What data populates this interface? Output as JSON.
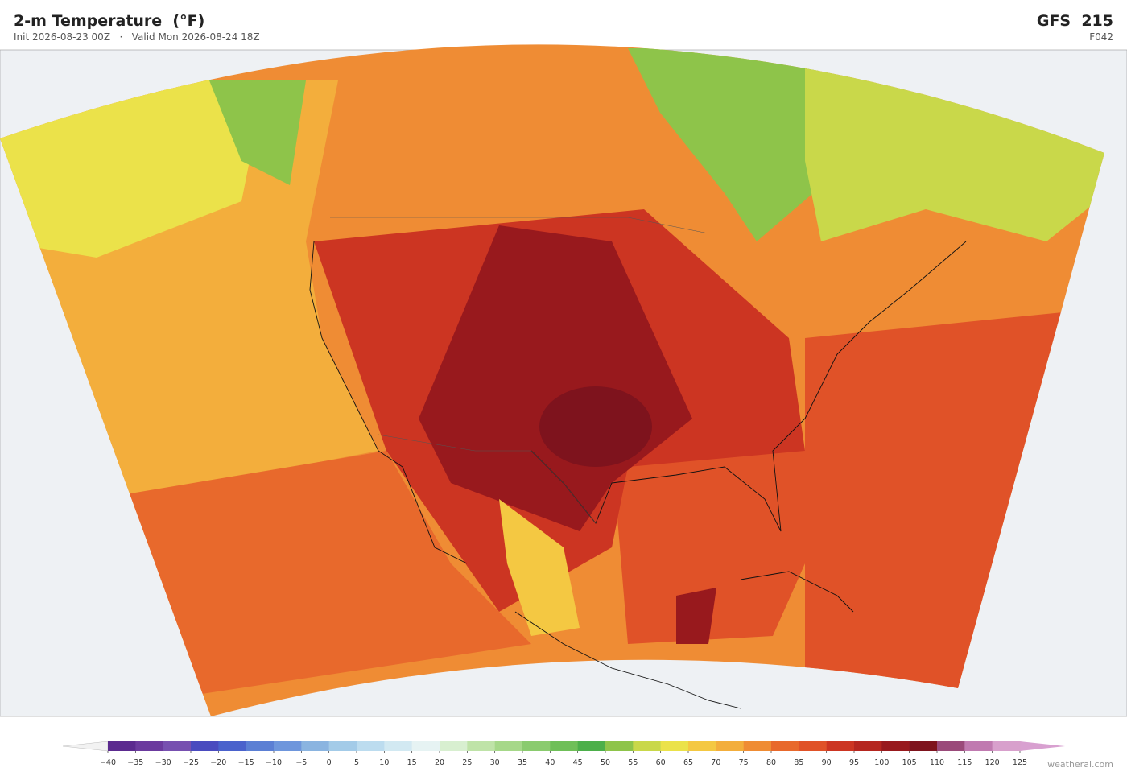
{
  "header": {
    "title": "2-m Temperature  (°F)",
    "subtitle": "Init 2026-08-23 00Z   ·   Valid Mon 2026-08-24 18Z",
    "model": "GFS  215",
    "forecast_hour": "F042"
  },
  "colorbar": {
    "ticks": [
      {
        "value": -40,
        "label": "−40"
      },
      {
        "value": -35,
        "label": "−35"
      },
      {
        "value": -30,
        "label": "−30"
      },
      {
        "value": -25,
        "label": "−25"
      },
      {
        "value": -20,
        "label": "−20"
      },
      {
        "value": -15,
        "label": "−15"
      },
      {
        "value": -10,
        "label": "−10"
      },
      {
        "value": -5,
        "label": "−5"
      },
      0,
      5,
      10,
      15,
      20,
      25,
      30,
      35,
      40,
      45,
      50,
      55,
      60,
      65,
      70,
      75,
      80,
      85,
      90,
      95,
      100,
      105,
      110,
      115,
      120,
      125
    ],
    "colors": [
      "#5b2a8f",
      "#6b3a9e",
      "#7750b0",
      "#4a4bbf",
      "#4a62cc",
      "#5b7fd4",
      "#6e96dc",
      "#8ab4e0",
      "#a3cbe8",
      "#bcdcef",
      "#d2e9f2",
      "#e6f3f3",
      "#d8efd0",
      "#bfe3a8",
      "#a6d889",
      "#8acb6e",
      "#6fbf58",
      "#4caf4a",
      "#8ec44a",
      "#c9d84a",
      "#ebe24a",
      "#f4c842",
      "#f3ae3c",
      "#ef8c34",
      "#e8692c",
      "#e05228",
      "#cc3522",
      "#b5261f",
      "#98191d",
      "#7e131d",
      "#9a4a7a",
      "#c07ab0",
      "#d8a0cc"
    ],
    "under_color": "#f2f2f2",
    "over_color": "#d8a0d0"
  },
  "footer": {
    "credit": "weatherai.com"
  }
}
